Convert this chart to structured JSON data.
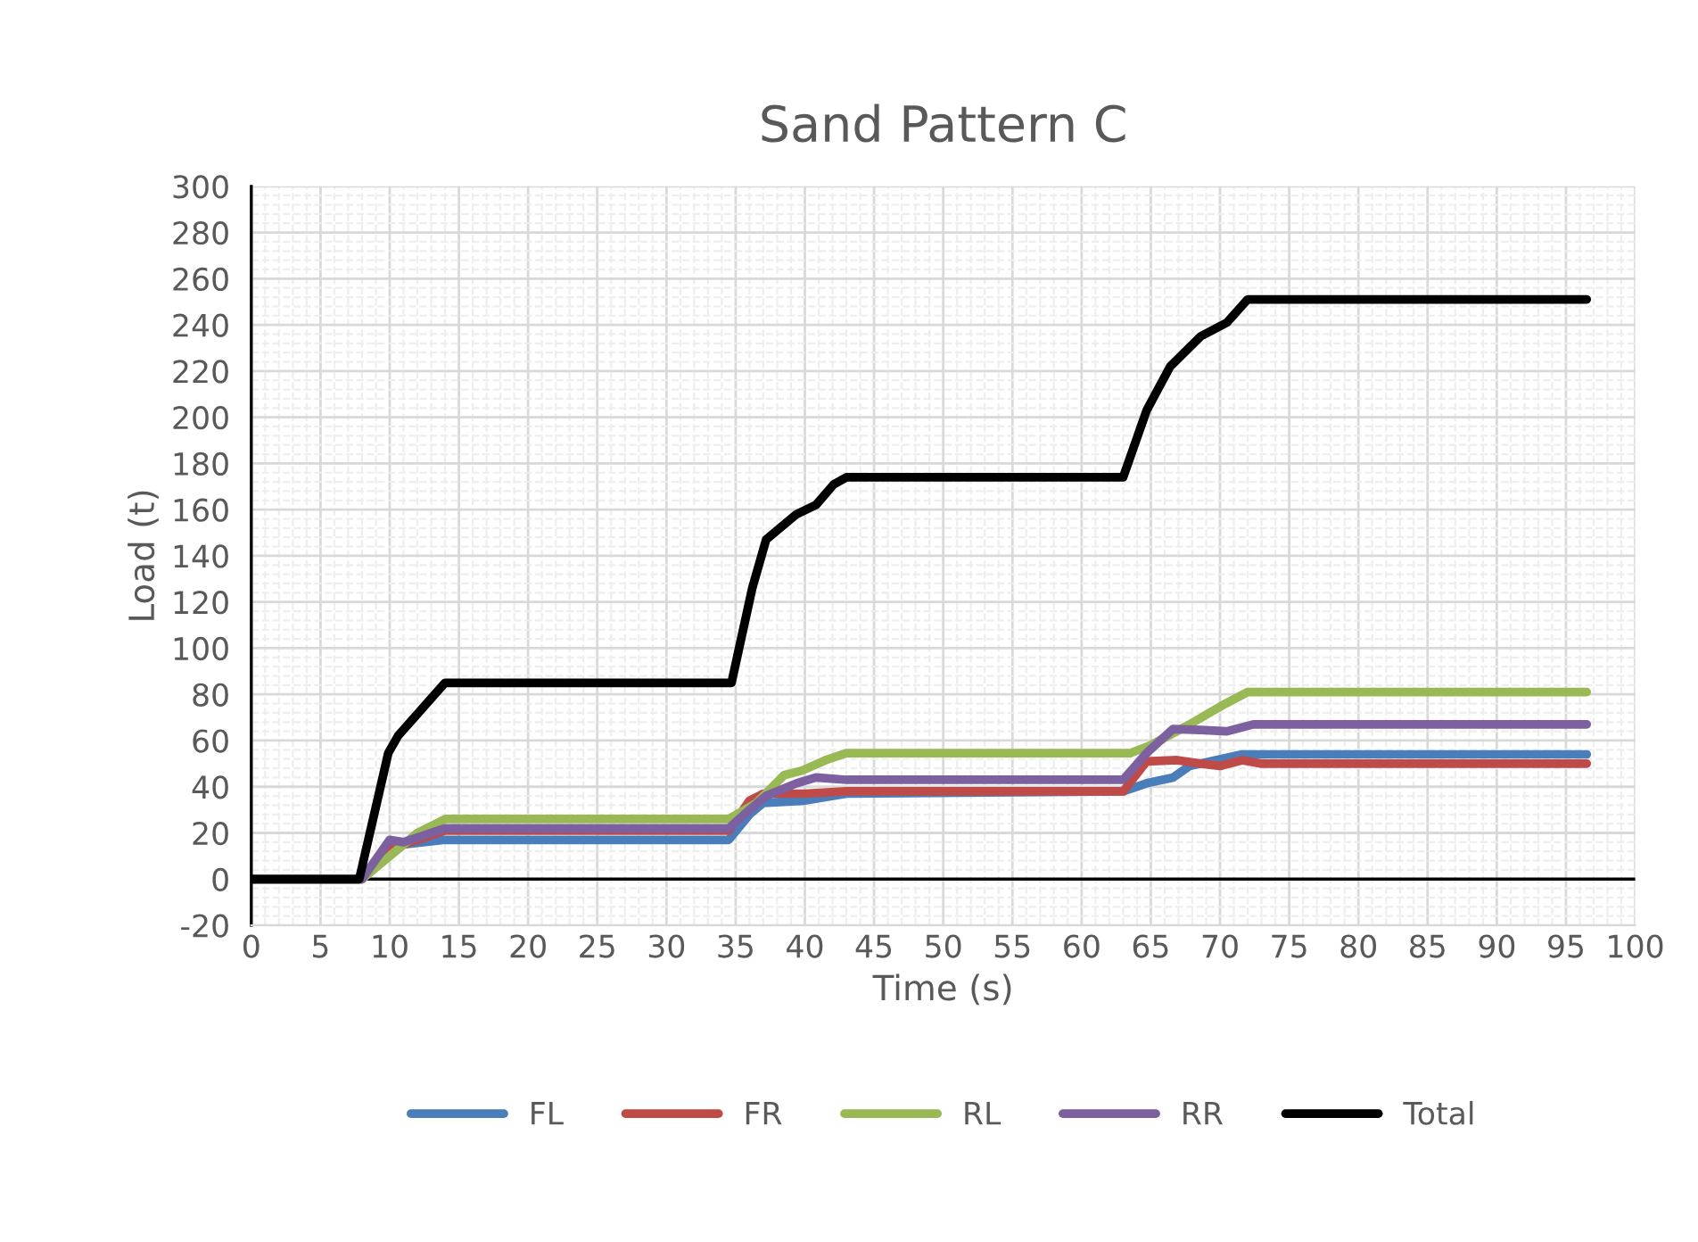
{
  "chart_data": {
    "type": "line",
    "title": "Sand Pattern C",
    "xlabel": "Time (s)",
    "ylabel": "Load (t)",
    "xlim": [
      0,
      100
    ],
    "xticks": [
      0,
      5,
      10,
      15,
      20,
      25,
      30,
      35,
      40,
      45,
      50,
      55,
      60,
      65,
      70,
      75,
      80,
      85,
      90,
      95,
      100
    ],
    "ylim": [
      -20,
      300
    ],
    "yticks": [
      -20,
      0,
      20,
      40,
      60,
      80,
      100,
      120,
      140,
      160,
      180,
      200,
      220,
      240,
      260,
      280,
      300
    ],
    "grid": true,
    "legend": "bottom",
    "marker": "none",
    "line_style": "solid",
    "ref_lines": [
      {
        "axis": "y",
        "value": 0,
        "color": "#000000"
      }
    ],
    "series": [
      {
        "name": "FL",
        "color": "#4a7ebb",
        "x": [
          0,
          8,
          9.5,
          11,
          14,
          34.5,
          36,
          37,
          40,
          43,
          63,
          64.7,
          66.6,
          67.8,
          71.6,
          96.5
        ],
        "values": [
          0,
          0,
          8,
          15,
          17,
          17,
          28,
          33,
          34,
          37,
          38,
          41.5,
          44,
          49,
          54,
          54
        ]
      },
      {
        "name": "FR",
        "color": "#be4b48",
        "x": [
          0,
          8,
          10,
          12,
          14,
          34.5,
          36,
          37,
          40,
          43,
          63,
          64.7,
          66.9,
          68.6,
          70,
          71.6,
          73,
          96.5
        ],
        "values": [
          0,
          0,
          13,
          17,
          21,
          21,
          34,
          37,
          37,
          38,
          38,
          51,
          51.5,
          50,
          49,
          51.5,
          50,
          50
        ]
      },
      {
        "name": "RL",
        "color": "#98b954",
        "x": [
          0,
          8,
          10,
          12,
          14,
          34.5,
          36.5,
          38.5,
          39.8,
          41.5,
          43,
          63.5,
          65,
          67.8,
          70.4,
          72,
          96.5
        ],
        "values": [
          0,
          0,
          10,
          20,
          26,
          26,
          33,
          45,
          47,
          51.5,
          54.5,
          54.5,
          58,
          67,
          76,
          81,
          81
        ]
      },
      {
        "name": "RR",
        "color": "#7d60a0",
        "x": [
          0,
          8,
          10,
          11,
          12.5,
          14,
          34.5,
          36,
          37.2,
          39.4,
          40.8,
          43,
          63,
          64.7,
          66.6,
          68.6,
          70.5,
          72.4,
          96.5
        ],
        "values": [
          0,
          0,
          17,
          16,
          19,
          22,
          22,
          30,
          36,
          41.5,
          44,
          43,
          43,
          54.6,
          65,
          64.6,
          64,
          67,
          67
        ]
      },
      {
        "name": "Total",
        "color": "#000000",
        "x": [
          0,
          7.8,
          9.9,
          10.6,
          14,
          34.7,
          36.2,
          37.2,
          39.4,
          40.8,
          42.1,
          43,
          63,
          64.7,
          66.4,
          68.6,
          70.5,
          72,
          96.5
        ],
        "values": [
          0,
          0,
          54.6,
          62,
          85,
          85,
          126,
          147,
          158,
          162,
          171,
          174,
          174,
          203,
          222,
          235,
          241,
          251,
          251
        ]
      }
    ]
  }
}
